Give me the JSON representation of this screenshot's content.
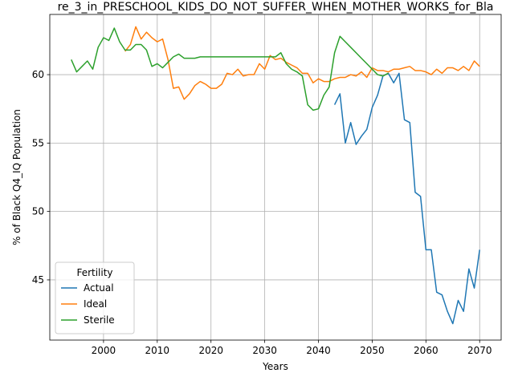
{
  "chart_data": {
    "type": "line",
    "title": "re_3_in_PRESCHOOL_KIDS_DO_NOT_SUFFER_WHEN_MOTHER_WORKS_for_Bla",
    "xlabel": "Years",
    "ylabel": "% of Black Q4_IQ Population",
    "xlim": [
      1990,
      2074
    ],
    "ylim": [
      40.6,
      64.4
    ],
    "xticks": [
      2000,
      2010,
      2020,
      2030,
      2040,
      2050,
      2060,
      2070
    ],
    "yticks": [
      45,
      50,
      55,
      60
    ],
    "grid": true,
    "legend": {
      "title": "Fertility",
      "placement": "lower-left"
    },
    "series": [
      {
        "name": "Actual",
        "color": "#1f77b4",
        "x": [
          2043,
          2044,
          2045,
          2046,
          2047,
          2048,
          2049,
          2050,
          2051,
          2052,
          2053,
          2054,
          2055,
          2056,
          2057,
          2058,
          2059,
          2060,
          2061,
          2062,
          2063,
          2064,
          2065,
          2066,
          2067,
          2068,
          2069,
          2070
        ],
        "y": [
          57.8,
          58.6,
          55.0,
          56.5,
          54.9,
          55.5,
          56.0,
          57.6,
          58.5,
          59.9,
          60.1,
          59.4,
          60.1,
          56.7,
          56.5,
          51.4,
          51.1,
          47.2,
          47.2,
          44.1,
          43.9,
          42.7,
          41.8,
          43.5,
          42.7,
          45.8,
          44.4,
          47.2
        ]
      },
      {
        "name": "Ideal",
        "color": "#ff7f0e",
        "x": [
          2004,
          2005,
          2006,
          2007,
          2008,
          2009,
          2010,
          2011,
          2012,
          2013,
          2014,
          2015,
          2016,
          2017,
          2018,
          2019,
          2020,
          2021,
          2022,
          2023,
          2024,
          2025,
          2026,
          2027,
          2028,
          2029,
          2030,
          2031,
          2032,
          2033,
          2034,
          2035,
          2036,
          2037,
          2038,
          2039,
          2040,
          2041,
          2042,
          2043,
          2044,
          2045,
          2046,
          2047,
          2048,
          2049,
          2050,
          2051,
          2052,
          2053,
          2054,
          2055,
          2056,
          2057,
          2058,
          2059,
          2060,
          2061,
          2062,
          2063,
          2064,
          2065,
          2066,
          2067,
          2068,
          2069,
          2070
        ],
        "y": [
          61.7,
          62.2,
          63.5,
          62.6,
          63.1,
          62.7,
          62.4,
          62.6,
          61.1,
          59.0,
          59.1,
          58.2,
          58.6,
          59.2,
          59.5,
          59.3,
          59.0,
          59.0,
          59.3,
          60.1,
          60.0,
          60.4,
          59.9,
          60.0,
          60.0,
          60.8,
          60.4,
          61.4,
          61.1,
          61.2,
          60.9,
          60.7,
          60.5,
          60.1,
          60.1,
          59.4,
          59.7,
          59.5,
          59.5,
          59.7,
          59.8,
          59.8,
          60.0,
          59.9,
          60.2,
          59.8,
          60.5,
          60.3,
          60.3,
          60.2,
          60.4,
          60.4,
          60.5,
          60.6,
          60.3,
          60.3,
          60.2,
          60.0,
          60.4,
          60.1,
          60.5,
          60.5,
          60.3,
          60.6,
          60.3,
          61.0,
          60.6
        ]
      },
      {
        "name": "Sterile",
        "color": "#2ca02c",
        "x": [
          1994,
          1995,
          1996,
          1997,
          1998,
          1999,
          2000,
          2001,
          2002,
          2003,
          2004,
          2005,
          2006,
          2007,
          2008,
          2009,
          2010,
          2011,
          2012,
          2013,
          2014,
          2015,
          2016,
          2017,
          2018,
          2019,
          2020,
          2021,
          2022,
          2023,
          2024,
          2025,
          2026,
          2027,
          2028,
          2029,
          2030,
          2031,
          2032,
          2033,
          2034,
          2035,
          2036,
          2037,
          2038,
          2039,
          2040,
          2041,
          2042,
          2043,
          2044,
          2045,
          2046,
          2047,
          2048,
          2049,
          2050,
          2051,
          2052,
          2053
        ],
        "y": [
          61.1,
          60.2,
          60.6,
          61.0,
          60.4,
          62.0,
          62.7,
          62.5,
          63.4,
          62.4,
          61.8,
          61.8,
          62.2,
          62.2,
          61.8,
          60.6,
          60.8,
          60.5,
          60.9,
          61.3,
          61.5,
          61.2,
          61.2,
          61.2,
          61.3,
          61.3,
          61.3,
          61.3,
          61.3,
          61.3,
          61.3,
          61.3,
          61.3,
          61.3,
          61.3,
          61.3,
          61.3,
          61.3,
          61.3,
          61.6,
          60.8,
          60.4,
          60.2,
          59.9,
          57.8,
          57.4,
          57.5,
          58.5,
          59.1,
          61.6,
          62.8,
          62.4,
          62.0,
          61.6,
          61.2,
          60.8,
          60.4,
          60.0,
          59.9,
          60.1
        ]
      }
    ]
  }
}
